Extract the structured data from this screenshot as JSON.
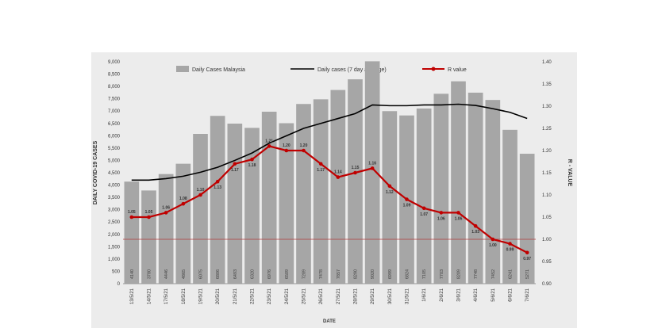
{
  "chart_data": {
    "type": "bar+line",
    "xlabel": "DATE",
    "ylabel": "DAILY COVID-19 CASES",
    "y2label": "R - VALUE",
    "ylim": [
      0,
      9000
    ],
    "y2lim": [
      0.9,
      1.4
    ],
    "yticks": [
      "0",
      "500",
      "1,000",
      "1,500",
      "2,000",
      "2,500",
      "3,000",
      "3,500",
      "4,000",
      "4,500",
      "5,000",
      "5,500",
      "6,000",
      "6,500",
      "7,000",
      "7,500",
      "8,000",
      "8,500",
      "9,000"
    ],
    "y2ticks": [
      "0.90",
      "0.95",
      "1.00",
      "1.05",
      "1.10",
      "1.15",
      "1.20",
      "1.25",
      "1.30",
      "1.35",
      "1.40"
    ],
    "categories": [
      "13/5/21",
      "14/5/21",
      "17/5/21",
      "18/5/21",
      "19/5/21",
      "20/5/21",
      "21/5/21",
      "22/5/21",
      "23/5/21",
      "24/5/21",
      "25/5/21",
      "26/5/21",
      "27/5/21",
      "28/5/21",
      "29/5/21",
      "30/5/21",
      "31/5/21",
      "1/6/21",
      "2/6/21",
      "3/6/21",
      "4/6/21",
      "5/6/21",
      "6/6/21",
      "7/6/21"
    ],
    "series": [
      {
        "name": "Daily Cases Malaysia",
        "type": "bar",
        "color": "#a6a6a6",
        "values": [
          4140,
          3780,
          4446,
          4865,
          6075,
          6806,
          6493,
          6320,
          6976,
          6509,
          7289,
          7478,
          7857,
          8290,
          9020,
          6999,
          6824,
          7105,
          7703,
          8209,
          7748,
          7452,
          6241,
          5271
        ]
      },
      {
        "name": "Daily cases (7 day average)",
        "type": "line",
        "color": "#000000",
        "values": [
          4200,
          4200,
          4260,
          4360,
          4520,
          4720,
          5000,
          5300,
          5700,
          6000,
          6300,
          6500,
          6700,
          6900,
          7250,
          7220,
          7220,
          7250,
          7250,
          7280,
          7230,
          7100,
          6950,
          6700
        ]
      },
      {
        "name": "R value",
        "type": "line",
        "axis": "right",
        "color": "#c00000",
        "values": [
          1.05,
          1.05,
          1.06,
          1.08,
          1.1,
          1.13,
          1.17,
          1.18,
          1.21,
          1.2,
          1.2,
          1.17,
          1.14,
          1.15,
          1.16,
          1.12,
          1.09,
          1.07,
          1.06,
          1.06,
          1.03,
          1.0,
          0.99,
          0.97
        ],
        "labels": [
          "1.05",
          "1.05",
          "1.06",
          "1.08",
          "1.10",
          "1.13",
          "1.17",
          "1.18",
          "1.21",
          "1.20",
          "1.20",
          "1.17",
          "1.14",
          "1.15",
          "1.16",
          "1.12",
          "1.09",
          "1.07",
          "1.06",
          "1.06",
          "1.03",
          "1.00",
          "0.99",
          "0.97"
        ]
      }
    ],
    "reference_line": {
      "axis": "right",
      "value": 1.0,
      "color": "#b03a3a"
    },
    "legend": "top",
    "grid": false
  }
}
